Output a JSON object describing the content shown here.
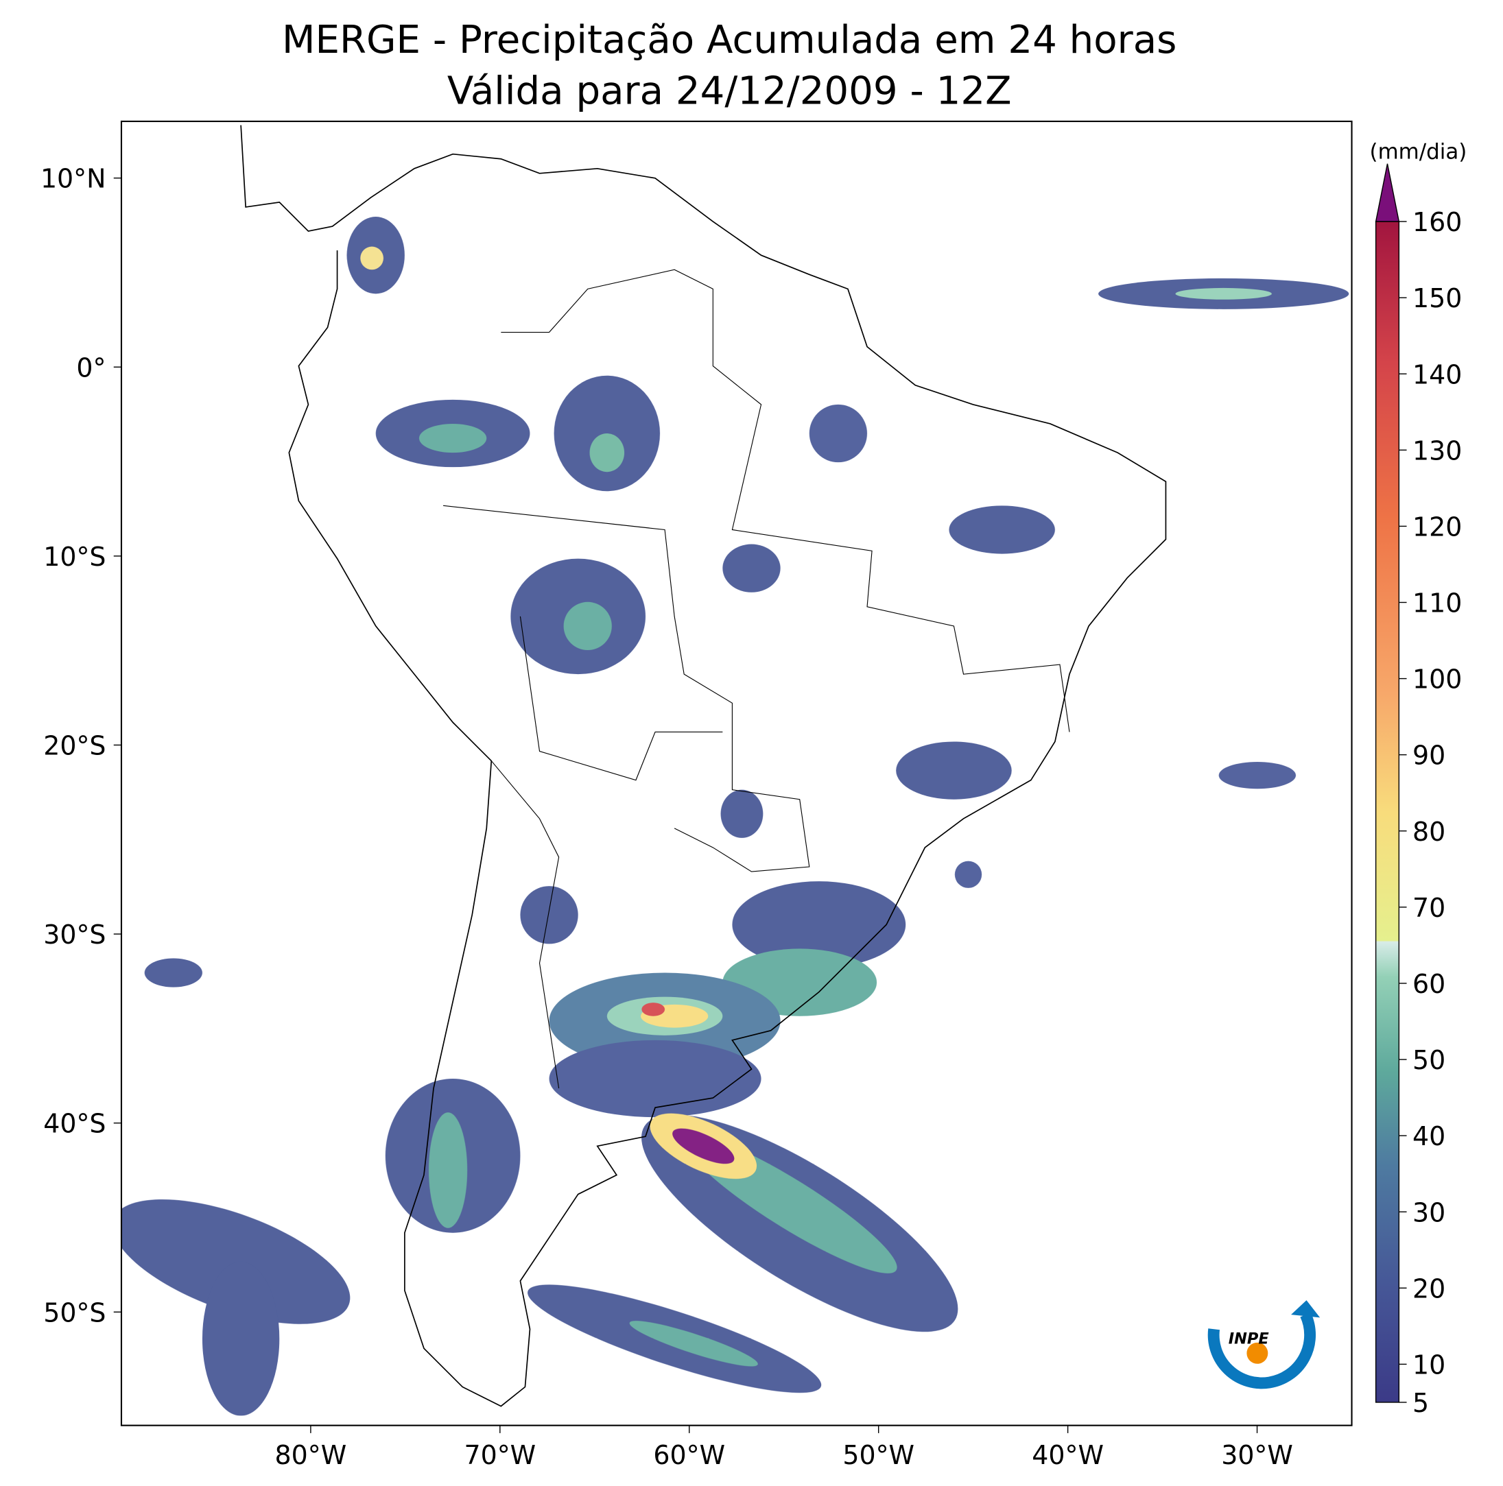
{
  "map": {
    "title": [
      "MERGE - Precipitação Acumulada em 24 horas",
      "Válida para 24/12/2009 - 12Z"
    ],
    "xlim": [
      -90,
      -25
    ],
    "ylim": [
      -56,
      13
    ],
    "xticks": [
      {
        "value": -80,
        "label": "80°W"
      },
      {
        "value": -70,
        "label": "70°W"
      },
      {
        "value": -60,
        "label": "60°W"
      },
      {
        "value": -50,
        "label": "50°W"
      },
      {
        "value": -40,
        "label": "40°W"
      },
      {
        "value": -30,
        "label": "30°W"
      }
    ],
    "yticks": [
      {
        "value": 10,
        "label": "10°N"
      },
      {
        "value": 0,
        "label": "0°"
      },
      {
        "value": -10,
        "label": "10°S"
      },
      {
        "value": -20,
        "label": "20°S"
      },
      {
        "value": -30,
        "label": "30°S"
      },
      {
        "value": -40,
        "label": "40°S"
      },
      {
        "value": -50,
        "label": "50°S"
      }
    ]
  },
  "colorbar": {
    "label": "(mm/dia)",
    "range": [
      5,
      160
    ],
    "ticks": [
      5,
      10,
      20,
      30,
      40,
      50,
      60,
      70,
      80,
      90,
      100,
      110,
      120,
      130,
      140,
      150,
      160
    ]
  },
  "logo": {
    "text": "INPE"
  }
}
